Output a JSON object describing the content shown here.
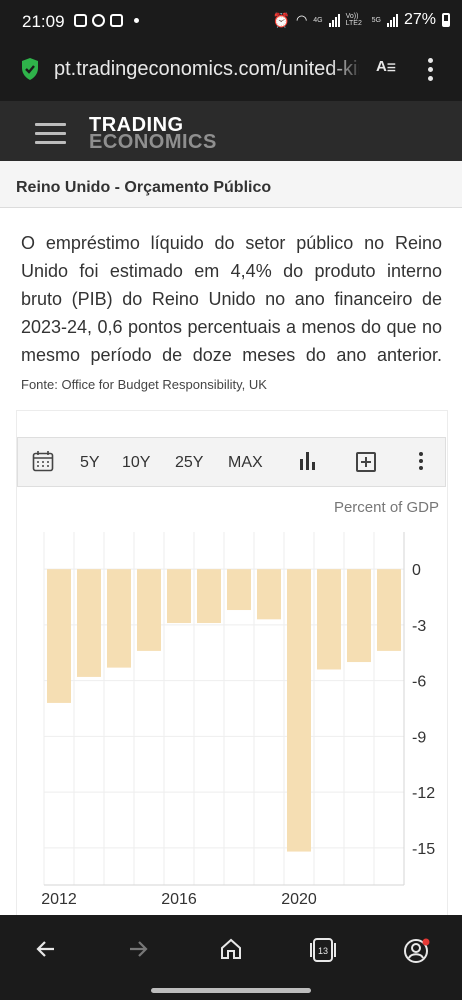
{
  "status_bar": {
    "time": "21:09",
    "battery": "27%",
    "network_badges": [
      "4G",
      "Vo)) LTE2",
      "5G"
    ]
  },
  "browser": {
    "url": "pt.tradingeconomics.com/united-kingdom/government-budget",
    "secure_color": "#2fb34a"
  },
  "site": {
    "logo_line1": "TRADING",
    "logo_line2": "ECONOMICS"
  },
  "page": {
    "title": "Reino Unido - Orçamento Público",
    "description": "O empréstimo líquido do setor público no Reino Unido foi estimado em 4,4% do produto interno bruto (PIB) do Reino Unido no ano financeiro de 2023-24, 0,6 pontos percentuais a menos do que no mesmo período de doze meses do ano anterior.",
    "source": "Fonte: Office for Budget Responsibility, UK"
  },
  "toolbar": {
    "buttons": [
      "5Y",
      "10Y",
      "25Y",
      "MAX"
    ]
  },
  "chart_data": {
    "type": "bar",
    "unit_label": "Percent of GDP",
    "bar_color": "#f5deb3",
    "x": [
      2012,
      2013,
      2014,
      2015,
      2016,
      2017,
      2018,
      2019,
      2020,
      2021,
      2022,
      2023
    ],
    "values": [
      -7.2,
      -5.8,
      -5.3,
      -4.4,
      -2.9,
      -2.9,
      -2.2,
      -2.7,
      -15.2,
      -5.4,
      -5.0,
      -4.4
    ],
    "x_tick_labels": [
      "2012",
      "2016",
      "2020"
    ],
    "x_tick_years": [
      2012,
      2016,
      2020
    ],
    "y_ticks": [
      0,
      -3,
      -6,
      -9,
      -12,
      -15
    ],
    "y_tick_labels": [
      "0",
      "-3",
      "-6",
      "-9",
      "-12",
      "-15"
    ],
    "ylim": [
      -17,
      2
    ],
    "grid": true,
    "y_axis_position": "right"
  }
}
